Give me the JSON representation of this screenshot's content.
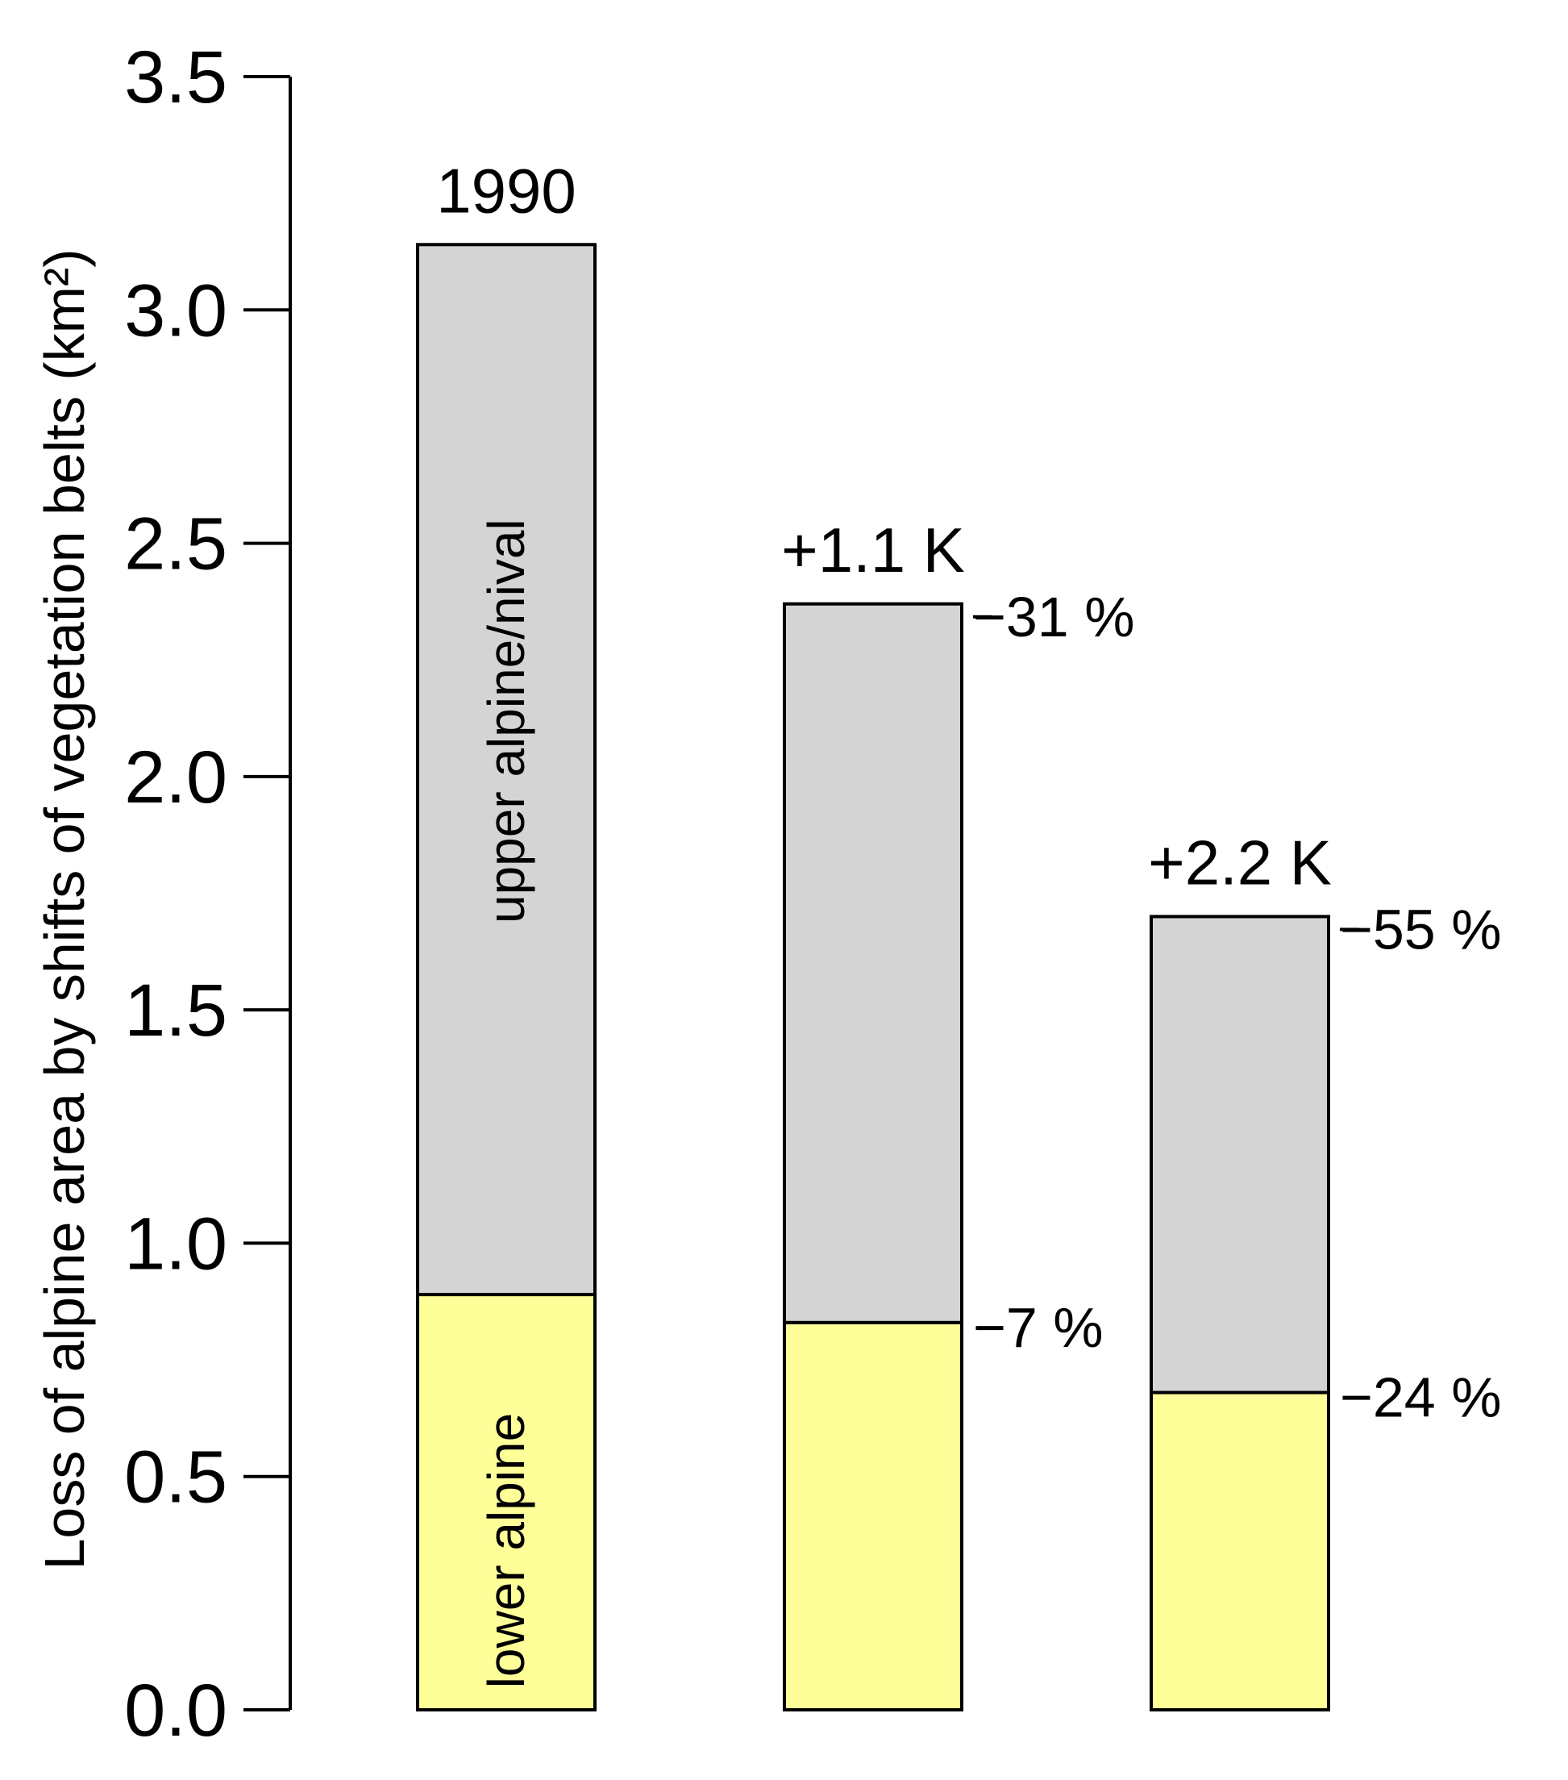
{
  "chart_data": {
    "type": "bar",
    "stacked": true,
    "categories": [
      "1990",
      "+1.1 K",
      "+2.2 K"
    ],
    "series": [
      {
        "name": "lower alpine",
        "color": "#ffff99",
        "values": [
          0.89,
          0.83,
          0.68
        ]
      },
      {
        "name": "upper alpine/nival",
        "color": "#d4d4d4",
        "values": [
          2.25,
          1.54,
          1.02
        ]
      }
    ],
    "totals": [
      3.14,
      2.37,
      1.7
    ],
    "change_labels": {
      "lower": [
        "",
        "−7 %",
        "−24 %"
      ],
      "upper": [
        "",
        "−31 %",
        "−55 %"
      ]
    },
    "ylabel": "Loss of alpine area by shifts of vegetation belts (km²)",
    "ylim": [
      0,
      3.5
    ],
    "yticks": [
      "0.0",
      "0.5",
      "1.0",
      "1.5",
      "2.0",
      "2.5",
      "3.0",
      "3.5"
    ],
    "grid": false,
    "legend": "none"
  }
}
